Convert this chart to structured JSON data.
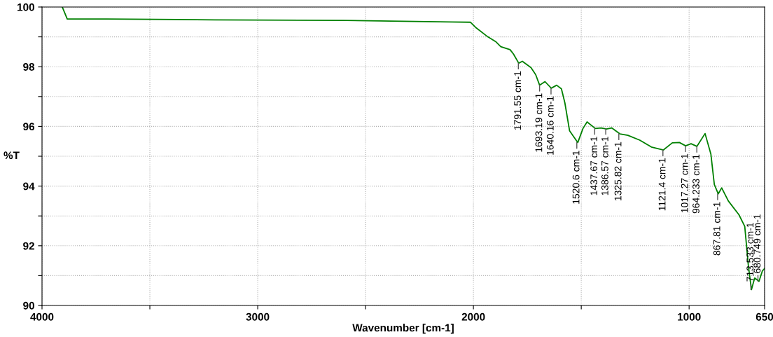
{
  "chart_data": {
    "type": "line",
    "xlabel": "Wavenumber [cm-1]",
    "ylabel": "%T",
    "x": [
      3906,
      3883,
      3700,
      3200,
      2600,
      2100,
      2014,
      1987,
      1933,
      1895,
      1873,
      1830,
      1814,
      1790,
      1773,
      1733,
      1711,
      1693,
      1668,
      1639,
      1614,
      1592,
      1576,
      1554,
      1516,
      1492,
      1473,
      1435,
      1408,
      1383,
      1359,
      1321,
      1284,
      1229,
      1175,
      1119,
      1078,
      1045,
      1016,
      991,
      964,
      926,
      899,
      883,
      865,
      849,
      818,
      769,
      742,
      725,
      711,
      696,
      676,
      660,
      650
    ],
    "series": [
      {
        "color": "#008000",
        "values": [
          100,
          99.6,
          99.6,
          99.57,
          99.55,
          99.5,
          99.49,
          99.3,
          99.0,
          98.83,
          98.67,
          98.57,
          98.42,
          98.12,
          98.18,
          97.97,
          97.73,
          97.38,
          97.5,
          97.28,
          97.38,
          97.26,
          96.79,
          95.85,
          95.46,
          95.93,
          96.15,
          95.93,
          95.95,
          95.91,
          95.95,
          95.75,
          95.7,
          95.54,
          95.31,
          95.21,
          95.45,
          95.46,
          95.35,
          95.42,
          95.33,
          95.76,
          95.07,
          94.05,
          93.74,
          93.94,
          93.5,
          93.04,
          92.65,
          91.31,
          90.53,
          90.92,
          90.81,
          91.16,
          91.24
        ]
      }
    ],
    "xlim": [
      4000,
      650
    ],
    "xticks": [
      4000,
      {
        "value": 3500,
        "label": null
      },
      3000,
      {
        "value": 2500,
        "label": null
      },
      2000,
      {
        "value": 1500,
        "label": null
      },
      1000,
      650
    ],
    "ylim": [
      90,
      100
    ],
    "yticks": [
      90,
      {
        "value": 91,
        "label": null
      },
      92,
      {
        "value": 93,
        "label": null
      },
      94,
      {
        "value": 95,
        "label": null
      },
      96,
      {
        "value": 97,
        "label": null
      },
      98,
      {
        "value": 99,
        "label": null
      },
      100
    ],
    "grid": true,
    "annotations": [
      {
        "text": "1791.55 cm-1",
        "x": 1791.55,
        "y": 98.12
      },
      {
        "text": "1693.19 cm-1",
        "x": 1693.19,
        "y": 97.38
      },
      {
        "text": "1640.16 cm-1",
        "x": 1640.16,
        "y": 97.28
      },
      {
        "text": "1520.6 cm-1",
        "x": 1520.6,
        "y": 95.46
      },
      {
        "text": "1437.67 cm-1",
        "x": 1437.67,
        "y": 95.93
      },
      {
        "text": "1386.57 cm-1",
        "x": 1386.57,
        "y": 95.93
      },
      {
        "text": "1325.82 cm-1",
        "x": 1325.82,
        "y": 95.75
      },
      {
        "text": "1121.4 cm-1",
        "x": 1121.4,
        "y": 95.21
      },
      {
        "text": "1017.27 cm-1",
        "x": 1017.27,
        "y": 95.35
      },
      {
        "text": "964.233 cm-1",
        "x": 964.233,
        "y": 95.33
      },
      {
        "text": "867.81 cm-1",
        "x": 867.81,
        "y": 93.74
      },
      {
        "text": "713.533 cm-1",
        "x": 713.533,
        "y": 90.53
      },
      {
        "text": "680.749 cm-1",
        "x": 680.749,
        "y": 90.81
      }
    ]
  }
}
